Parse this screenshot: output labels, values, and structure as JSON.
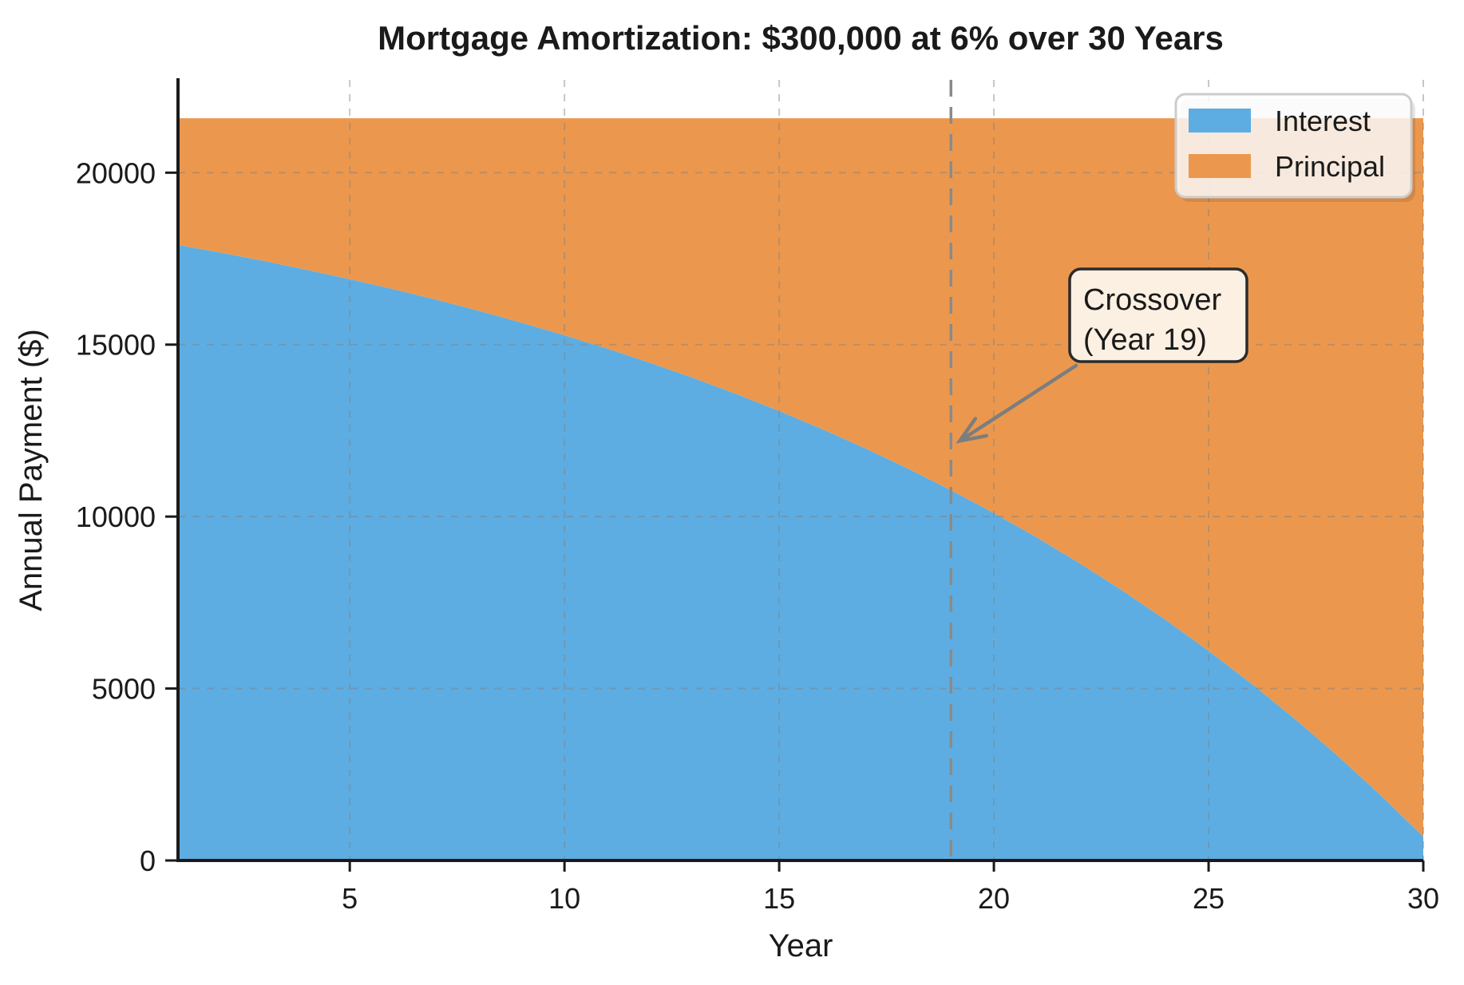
{
  "title": "Mortgage Amortization: $300,000 at 6% over 30 Years",
  "chart_data": {
    "type": "area",
    "stacked": true,
    "title": "Mortgage Amortization: $300,000 at 6% over 30 Years",
    "xlabel": "Year",
    "ylabel": "Annual Payment ($)",
    "x": [
      1,
      2,
      3,
      4,
      5,
      6,
      7,
      8,
      9,
      10,
      11,
      12,
      13,
      14,
      15,
      16,
      17,
      18,
      19,
      20,
      21,
      22,
      23,
      24,
      25,
      26,
      27,
      28,
      29,
      30
    ],
    "series": [
      {
        "name": "Interest",
        "color": "#5dade2",
        "values": [
          17901,
          17674,
          17433,
          17177,
          16905,
          16616,
          16310,
          15985,
          15639,
          15273,
          14883,
          14470,
          14031,
          13566,
          13071,
          12546,
          11988,
          11397,
          10768,
          10101,
          9393,
          8641,
          7843,
          6995,
          6095,
          5140,
          4126,
          3049,
          1906,
          692
        ]
      },
      {
        "name": "Principal",
        "color": "#eb984e",
        "values": [
          3683,
          3910,
          4151,
          4407,
          4679,
          4968,
          5274,
          5599,
          5945,
          6311,
          6701,
          7114,
          7553,
          8018,
          8513,
          9038,
          9596,
          10187,
          10816,
          11483,
          12191,
          12943,
          13741,
          14589,
          15489,
          16444,
          17458,
          18535,
          19678,
          20892
        ]
      }
    ],
    "total_annual_payment": 21584,
    "xlim": [
      1,
      30
    ],
    "ylim": [
      0,
      22700
    ],
    "xticks": [
      5,
      10,
      15,
      20,
      25,
      30
    ],
    "yticks": [
      0,
      5000,
      10000,
      15000,
      20000
    ],
    "grid": "dashed",
    "grid_color": "#808080",
    "legend_position": "upper right",
    "crossover_line": {
      "year": 19,
      "style": "dashed",
      "color": "#8a8a8a"
    },
    "annotation": {
      "line1": "Crossover",
      "line2": "(Year 19)",
      "target_year": 19,
      "target_value": 12200,
      "box_fill": "#fbf0e2",
      "box_border": "#2b2b2b",
      "arrow_color": "#7d7d7d"
    }
  },
  "legend": {
    "items": [
      {
        "label": "Interest",
        "color": "#5dade2"
      },
      {
        "label": "Principal",
        "color": "#eb984e"
      }
    ]
  }
}
